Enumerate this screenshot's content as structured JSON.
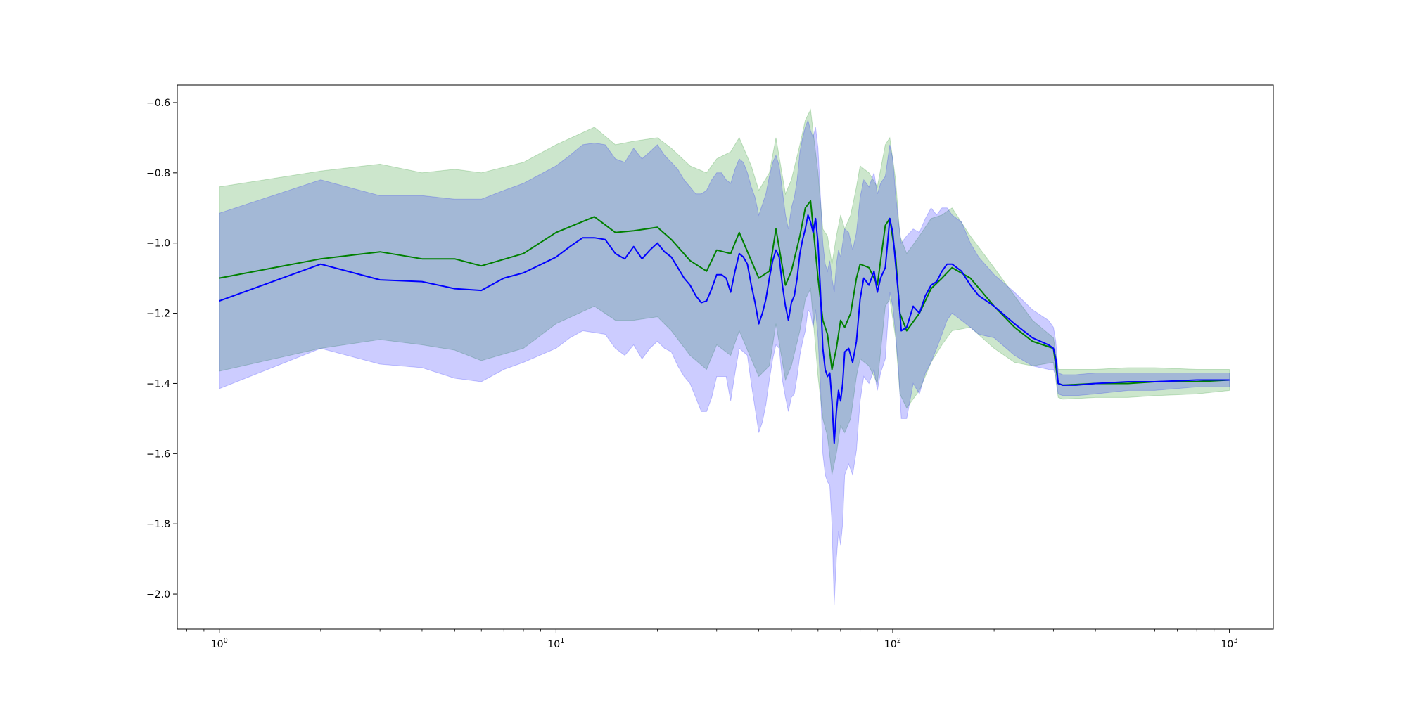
{
  "chart_data": {
    "type": "area",
    "title": "",
    "xlabel": "",
    "ylabel": "",
    "x_scale": "log",
    "xlim": [
      0.75,
      1350
    ],
    "ylim": [
      -2.1,
      -0.55
    ],
    "grid": false,
    "legend": "none",
    "x_ticks": [
      {
        "value": 1,
        "base": "10",
        "exp": "0"
      },
      {
        "value": 10,
        "base": "10",
        "exp": "1"
      },
      {
        "value": 100,
        "base": "10",
        "exp": "2"
      },
      {
        "value": 1000,
        "base": "10",
        "exp": "3"
      }
    ],
    "y_ticks": [
      {
        "value": -0.6,
        "label": "−0.6"
      },
      {
        "value": -0.8,
        "label": "−0.8"
      },
      {
        "value": -1.0,
        "label": "−1.0"
      },
      {
        "value": -1.2,
        "label": "−1.2"
      },
      {
        "value": -1.4,
        "label": "−1.4"
      },
      {
        "value": -1.6,
        "label": "−1.6"
      },
      {
        "value": -1.8,
        "label": "−1.8"
      },
      {
        "value": -2.0,
        "label": "−2.0"
      }
    ],
    "series": [
      {
        "color": "#008000",
        "fill_color": "#008000",
        "fill_opacity": 0.2,
        "x": [
          1,
          2,
          3,
          4,
          5,
          6,
          8,
          10,
          13,
          15,
          17,
          20,
          22,
          25,
          28,
          30,
          33,
          35,
          38,
          40,
          43,
          45,
          48,
          50,
          53,
          55,
          57,
          60,
          62,
          64,
          66,
          68,
          70,
          72,
          75,
          78,
          80,
          85,
          90,
          95,
          98,
          102,
          105,
          110,
          120,
          130,
          140,
          150,
          170,
          200,
          230,
          260,
          300,
          310,
          320,
          400,
          500,
          600,
          800,
          1000
        ],
        "mean": [
          -1.1,
          -1.045,
          -1.025,
          -1.045,
          -1.045,
          -1.065,
          -1.03,
          -0.97,
          -0.925,
          -0.97,
          -0.965,
          -0.955,
          -0.99,
          -1.05,
          -1.08,
          -1.02,
          -1.03,
          -0.97,
          -1.05,
          -1.1,
          -1.08,
          -0.96,
          -1.12,
          -1.08,
          -0.98,
          -0.9,
          -0.88,
          -1.1,
          -1.22,
          -1.26,
          -1.36,
          -1.3,
          -1.22,
          -1.24,
          -1.2,
          -1.1,
          -1.06,
          -1.07,
          -1.12,
          -0.95,
          -0.93,
          -1.04,
          -1.2,
          -1.25,
          -1.2,
          -1.13,
          -1.1,
          -1.07,
          -1.1,
          -1.18,
          -1.24,
          -1.28,
          -1.3,
          -1.4,
          -1.405,
          -1.4,
          -1.4,
          -1.395,
          -1.395,
          -1.39
        ],
        "upper": [
          -0.84,
          -0.795,
          -0.775,
          -0.8,
          -0.79,
          -0.8,
          -0.77,
          -0.72,
          -0.67,
          -0.72,
          -0.71,
          -0.7,
          -0.73,
          -0.78,
          -0.8,
          -0.76,
          -0.74,
          -0.7,
          -0.78,
          -0.85,
          -0.8,
          -0.7,
          -0.86,
          -0.82,
          -0.72,
          -0.65,
          -0.62,
          -0.8,
          -0.96,
          -0.98,
          -1.06,
          -0.98,
          -0.92,
          -0.96,
          -0.92,
          -0.84,
          -0.78,
          -0.8,
          -0.84,
          -0.72,
          -0.7,
          -0.82,
          -0.98,
          -1.03,
          -0.98,
          -0.93,
          -0.92,
          -0.9,
          -0.98,
          -1.07,
          -1.15,
          -1.22,
          -1.27,
          -1.36,
          -1.36,
          -1.36,
          -1.355,
          -1.355,
          -1.36,
          -1.36
        ],
        "lower": [
          -1.365,
          -1.3,
          -1.275,
          -1.29,
          -1.305,
          -1.335,
          -1.3,
          -1.23,
          -1.18,
          -1.22,
          -1.22,
          -1.21,
          -1.25,
          -1.32,
          -1.36,
          -1.29,
          -1.32,
          -1.25,
          -1.33,
          -1.38,
          -1.35,
          -1.23,
          -1.39,
          -1.35,
          -1.25,
          -1.16,
          -1.13,
          -1.38,
          -1.5,
          -1.55,
          -1.66,
          -1.6,
          -1.52,
          -1.54,
          -1.5,
          -1.38,
          -1.33,
          -1.35,
          -1.4,
          -1.18,
          -1.16,
          -1.27,
          -1.43,
          -1.47,
          -1.42,
          -1.34,
          -1.29,
          -1.25,
          -1.24,
          -1.3,
          -1.34,
          -1.35,
          -1.34,
          -1.44,
          -1.445,
          -1.44,
          -1.44,
          -1.435,
          -1.43,
          -1.42
        ]
      },
      {
        "color": "#0000ff",
        "fill_color": "#0000ff",
        "fill_opacity": 0.2,
        "x": [
          1,
          2,
          3,
          4,
          5,
          6,
          7,
          8,
          10,
          11,
          12,
          13,
          14,
          15,
          16,
          17,
          18,
          19,
          20,
          21,
          22,
          23,
          24,
          25,
          26,
          27,
          28,
          29,
          30,
          31,
          32,
          33,
          34,
          35,
          36,
          37,
          38,
          39,
          40,
          41,
          42,
          43,
          44,
          45,
          46,
          47,
          48,
          49,
          50,
          51,
          52,
          53,
          54,
          55,
          56,
          57,
          58,
          59,
          60,
          61,
          62,
          63,
          64,
          65,
          66,
          67,
          68,
          69,
          70,
          71,
          72,
          74,
          76,
          78,
          80,
          82,
          85,
          88,
          90,
          92,
          95,
          98,
          100,
          102,
          104,
          106,
          110,
          115,
          120,
          125,
          130,
          135,
          140,
          145,
          150,
          160,
          170,
          180,
          200,
          230,
          260,
          290,
          300,
          305,
          310,
          320,
          350,
          400,
          500,
          600,
          800,
          1000
        ],
        "mean": [
          -1.165,
          -1.06,
          -1.105,
          -1.11,
          -1.13,
          -1.135,
          -1.1,
          -1.085,
          -1.04,
          -1.01,
          -0.985,
          -0.985,
          -0.99,
          -1.03,
          -1.045,
          -1.01,
          -1.045,
          -1.02,
          -1.0,
          -1.025,
          -1.04,
          -1.07,
          -1.1,
          -1.12,
          -1.15,
          -1.17,
          -1.165,
          -1.13,
          -1.09,
          -1.09,
          -1.1,
          -1.14,
          -1.08,
          -1.03,
          -1.04,
          -1.06,
          -1.12,
          -1.17,
          -1.23,
          -1.2,
          -1.16,
          -1.1,
          -1.05,
          -1.02,
          -1.04,
          -1.12,
          -1.18,
          -1.22,
          -1.17,
          -1.15,
          -1.1,
          -1.03,
          -0.99,
          -0.96,
          -0.92,
          -0.94,
          -0.97,
          -0.93,
          -1.0,
          -1.14,
          -1.3,
          -1.36,
          -1.38,
          -1.37,
          -1.45,
          -1.57,
          -1.48,
          -1.42,
          -1.45,
          -1.4,
          -1.31,
          -1.3,
          -1.34,
          -1.28,
          -1.16,
          -1.1,
          -1.12,
          -1.08,
          -1.14,
          -1.1,
          -1.07,
          -0.93,
          -0.97,
          -1.06,
          -1.15,
          -1.25,
          -1.24,
          -1.18,
          -1.2,
          -1.15,
          -1.12,
          -1.11,
          -1.08,
          -1.06,
          -1.06,
          -1.08,
          -1.12,
          -1.15,
          -1.18,
          -1.23,
          -1.27,
          -1.29,
          -1.3,
          -1.33,
          -1.4,
          -1.405,
          -1.405,
          -1.4,
          -1.395,
          -1.395,
          -1.39,
          -1.39
        ],
        "upper": [
          -0.915,
          -0.82,
          -0.865,
          -0.865,
          -0.875,
          -0.875,
          -0.85,
          -0.83,
          -0.78,
          -0.75,
          -0.72,
          -0.715,
          -0.72,
          -0.76,
          -0.77,
          -0.73,
          -0.76,
          -0.74,
          -0.72,
          -0.75,
          -0.77,
          -0.79,
          -0.82,
          -0.84,
          -0.86,
          -0.86,
          -0.85,
          -0.82,
          -0.8,
          -0.8,
          -0.82,
          -0.83,
          -0.79,
          -0.76,
          -0.77,
          -0.8,
          -0.84,
          -0.87,
          -0.92,
          -0.89,
          -0.86,
          -0.81,
          -0.77,
          -0.75,
          -0.78,
          -0.85,
          -0.92,
          -0.96,
          -0.9,
          -0.87,
          -0.82,
          -0.74,
          -0.7,
          -0.67,
          -0.65,
          -0.68,
          -0.7,
          -0.67,
          -0.73,
          -0.87,
          -1.0,
          -1.06,
          -1.08,
          -1.05,
          -1.1,
          -1.14,
          -1.06,
          -1.02,
          -1.04,
          -1.0,
          -0.96,
          -0.97,
          -1.02,
          -0.97,
          -0.87,
          -0.82,
          -0.84,
          -0.8,
          -0.86,
          -0.83,
          -0.81,
          -0.72,
          -0.76,
          -0.86,
          -0.94,
          -1.0,
          -0.98,
          -0.96,
          -0.97,
          -0.93,
          -0.9,
          -0.92,
          -0.9,
          -0.9,
          -0.92,
          -0.94,
          -1.0,
          -1.04,
          -1.09,
          -1.14,
          -1.19,
          -1.22,
          -1.24,
          -1.28,
          -1.37,
          -1.375,
          -1.375,
          -1.37,
          -1.37,
          -1.37,
          -1.37,
          -1.37
        ],
        "lower": [
          -1.415,
          -1.3,
          -1.345,
          -1.355,
          -1.385,
          -1.395,
          -1.36,
          -1.34,
          -1.3,
          -1.27,
          -1.25,
          -1.255,
          -1.26,
          -1.3,
          -1.32,
          -1.29,
          -1.33,
          -1.3,
          -1.28,
          -1.3,
          -1.31,
          -1.35,
          -1.38,
          -1.4,
          -1.44,
          -1.48,
          -1.48,
          -1.44,
          -1.38,
          -1.38,
          -1.38,
          -1.45,
          -1.37,
          -1.3,
          -1.31,
          -1.32,
          -1.4,
          -1.47,
          -1.54,
          -1.51,
          -1.46,
          -1.39,
          -1.33,
          -1.29,
          -1.3,
          -1.39,
          -1.44,
          -1.48,
          -1.44,
          -1.43,
          -1.38,
          -1.32,
          -1.28,
          -1.25,
          -1.19,
          -1.2,
          -1.24,
          -1.19,
          -1.27,
          -1.41,
          -1.6,
          -1.66,
          -1.68,
          -1.69,
          -1.8,
          -2.03,
          -1.9,
          -1.82,
          -1.86,
          -1.8,
          -1.66,
          -1.63,
          -1.66,
          -1.59,
          -1.45,
          -1.38,
          -1.4,
          -1.36,
          -1.42,
          -1.37,
          -1.33,
          -1.14,
          -1.18,
          -1.26,
          -1.36,
          -1.5,
          -1.5,
          -1.4,
          -1.43,
          -1.37,
          -1.34,
          -1.3,
          -1.26,
          -1.22,
          -1.2,
          -1.22,
          -1.24,
          -1.26,
          -1.27,
          -1.32,
          -1.35,
          -1.36,
          -1.36,
          -1.38,
          -1.43,
          -1.435,
          -1.435,
          -1.43,
          -1.42,
          -1.42,
          -1.41,
          -1.41
        ]
      }
    ]
  }
}
